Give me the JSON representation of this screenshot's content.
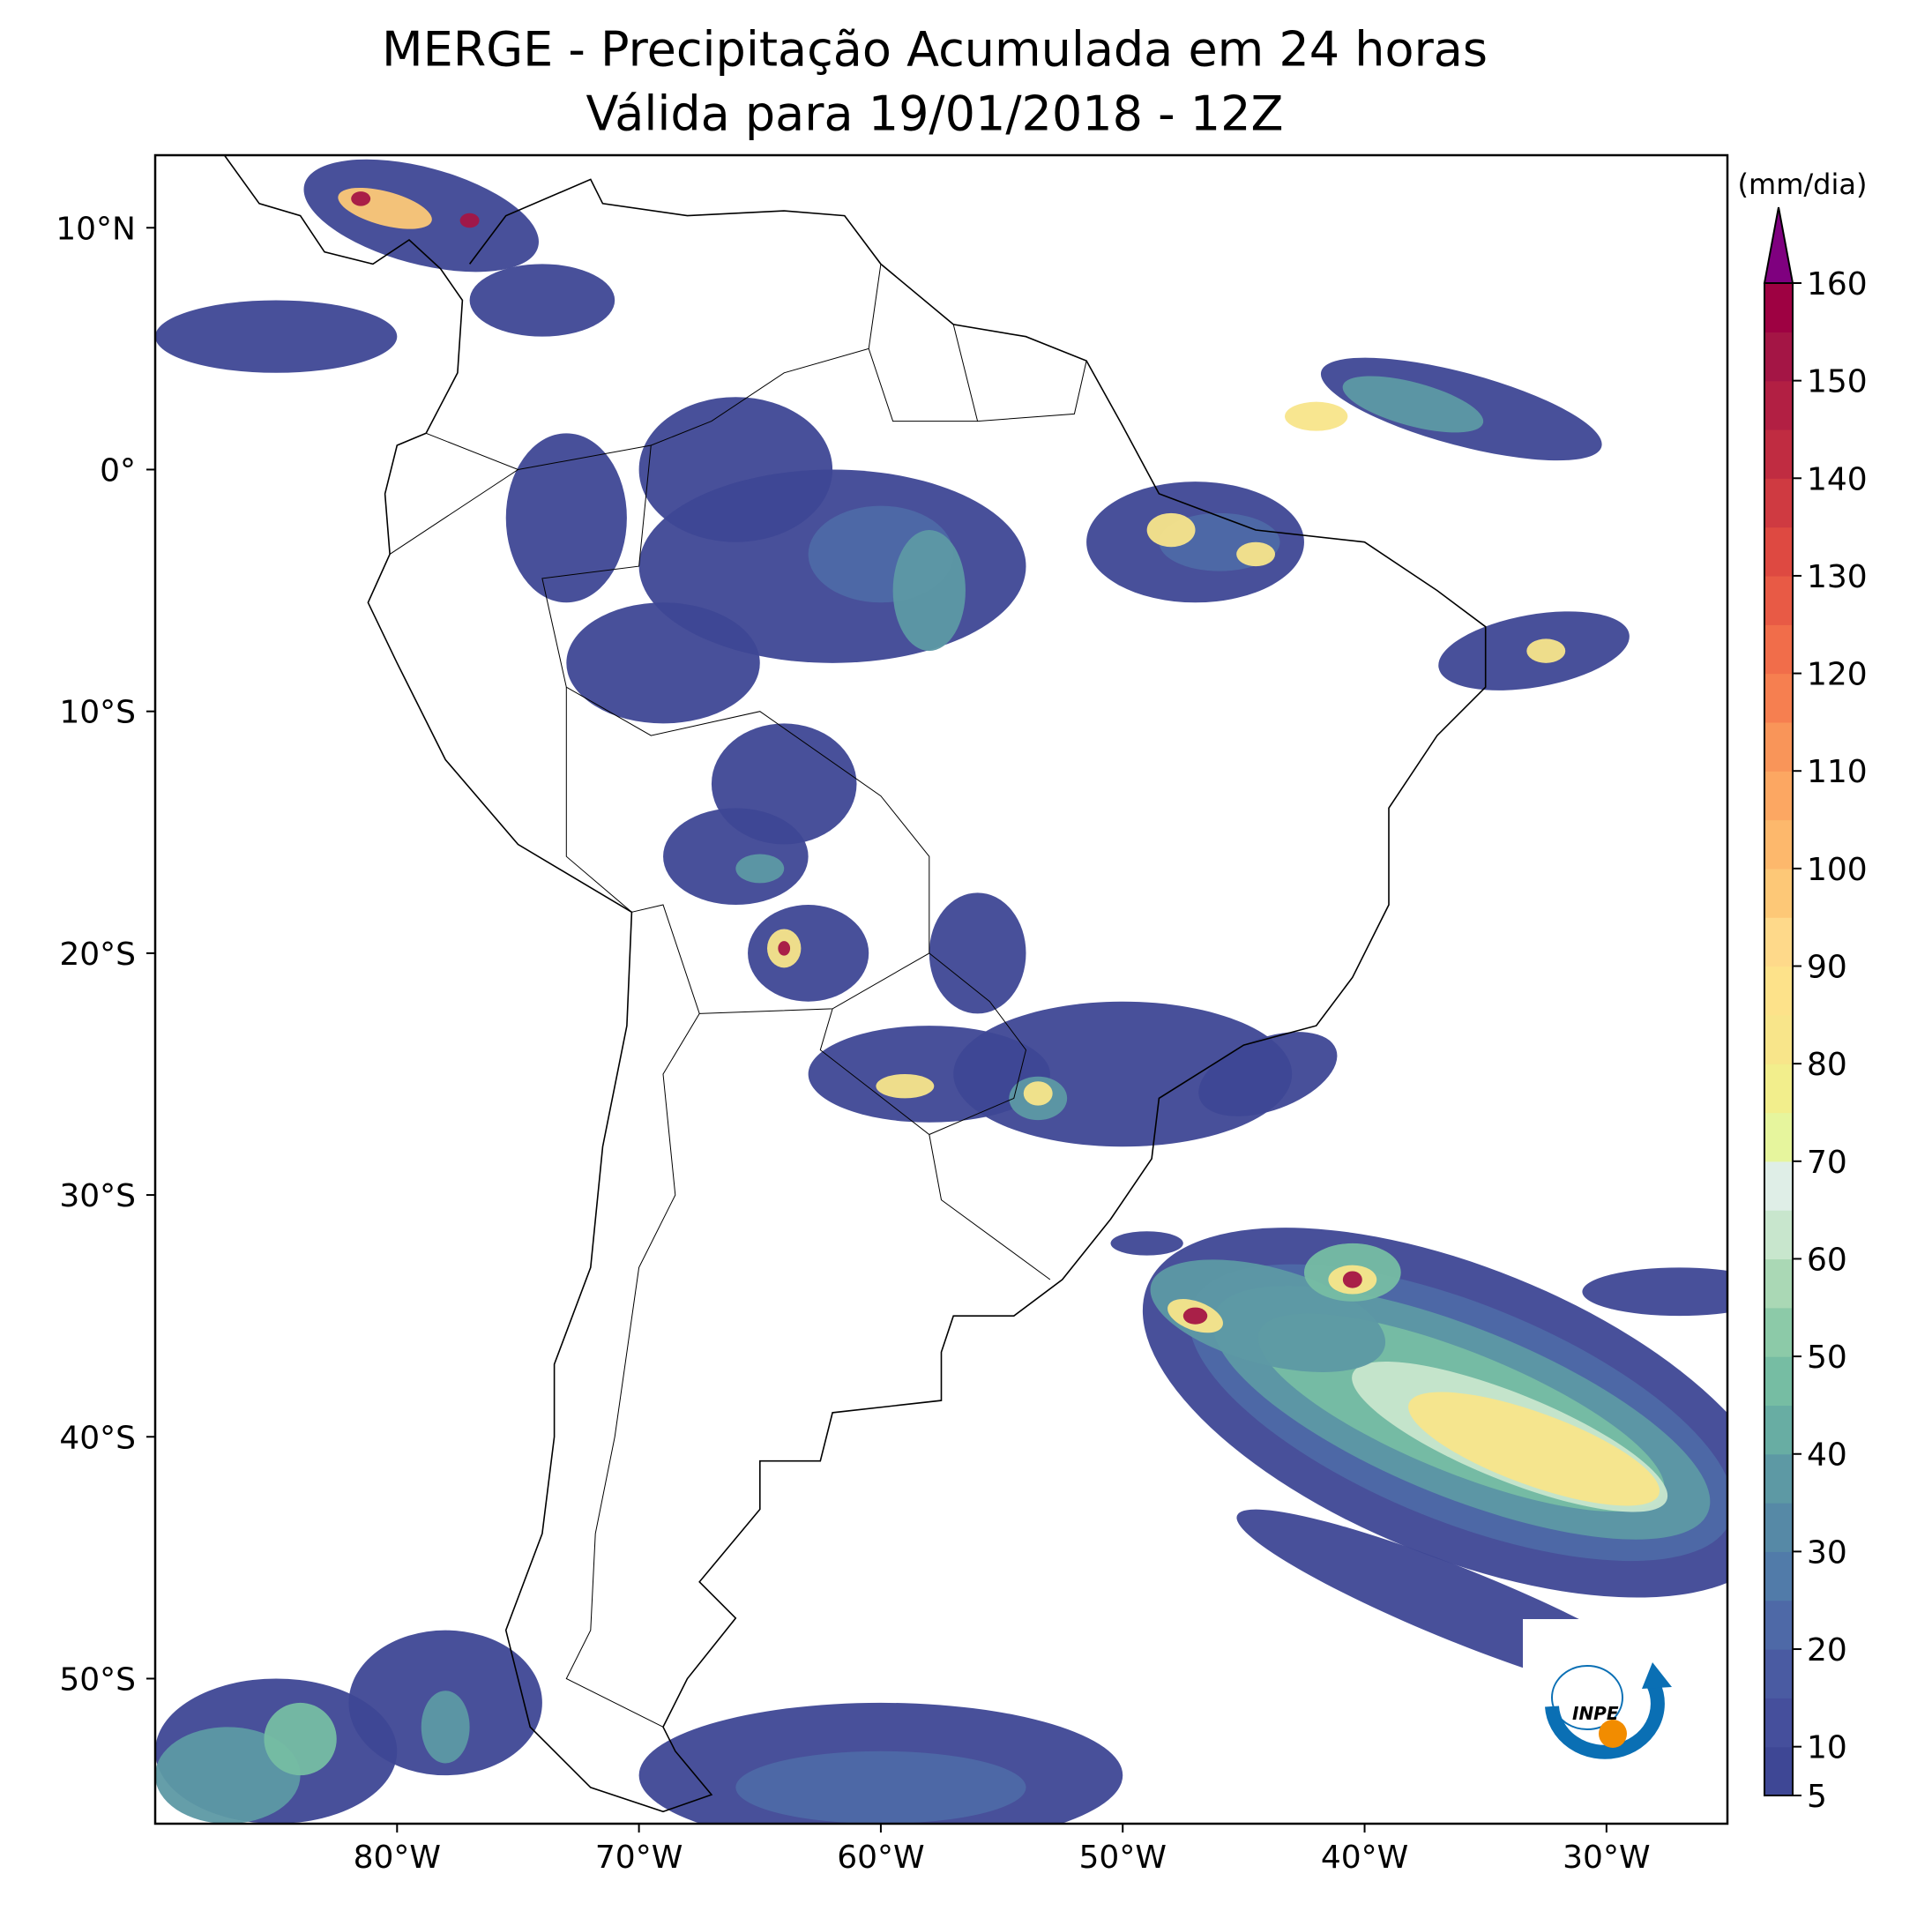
{
  "title": "MERGE - Precipitação Acumulada em 24 horas",
  "subtitle": "Válida para 19/01/2018 - 12Z",
  "map": {
    "lonlim": [
      -90,
      -25
    ],
    "latlim": [
      -56,
      13
    ],
    "lonticks": [
      {
        "value": -80,
        "label": "80°W"
      },
      {
        "value": -70,
        "label": "70°W"
      },
      {
        "value": -60,
        "label": "60°W"
      },
      {
        "value": -50,
        "label": "50°W"
      },
      {
        "value": -40,
        "label": "40°W"
      },
      {
        "value": -30,
        "label": "30°W"
      }
    ],
    "latticks": [
      {
        "value": 10,
        "label": "10°N"
      },
      {
        "value": 0,
        "label": "0°"
      },
      {
        "value": -10,
        "label": "10°S"
      },
      {
        "value": -20,
        "label": "20°S"
      },
      {
        "value": -30,
        "label": "30°S"
      },
      {
        "value": -40,
        "label": "40°S"
      },
      {
        "value": -50,
        "label": "50°S"
      }
    ]
  },
  "colorbar": {
    "unit": "(mm/dia)",
    "lim": [
      5,
      160
    ],
    "ticks": [
      5,
      10,
      20,
      30,
      40,
      50,
      60,
      70,
      80,
      90,
      100,
      110,
      120,
      130,
      140,
      150,
      160
    ],
    "colors": [
      "#3e4795",
      "#454f9c",
      "#4a5ba2",
      "#4e69a7",
      "#517ba9",
      "#5689a6",
      "#5d99a4",
      "#68ada3",
      "#76bda3",
      "#8ccaa8",
      "#aad8b5",
      "#c8e6cd",
      "#dfeee7",
      "#e6f59d",
      "#f2ee8c",
      "#f8e58a",
      "#fde28a",
      "#fed98a",
      "#fdc877",
      "#fdb86c",
      "#fca762",
      "#f99559",
      "#f67f50",
      "#f16d4a",
      "#e85a45",
      "#de4941",
      "#cf3a41",
      "#c02c41",
      "#b21f43",
      "#a41545",
      "#9e0142"
    ],
    "extend_color": "#7f007f"
  },
  "logo": "INPE"
}
